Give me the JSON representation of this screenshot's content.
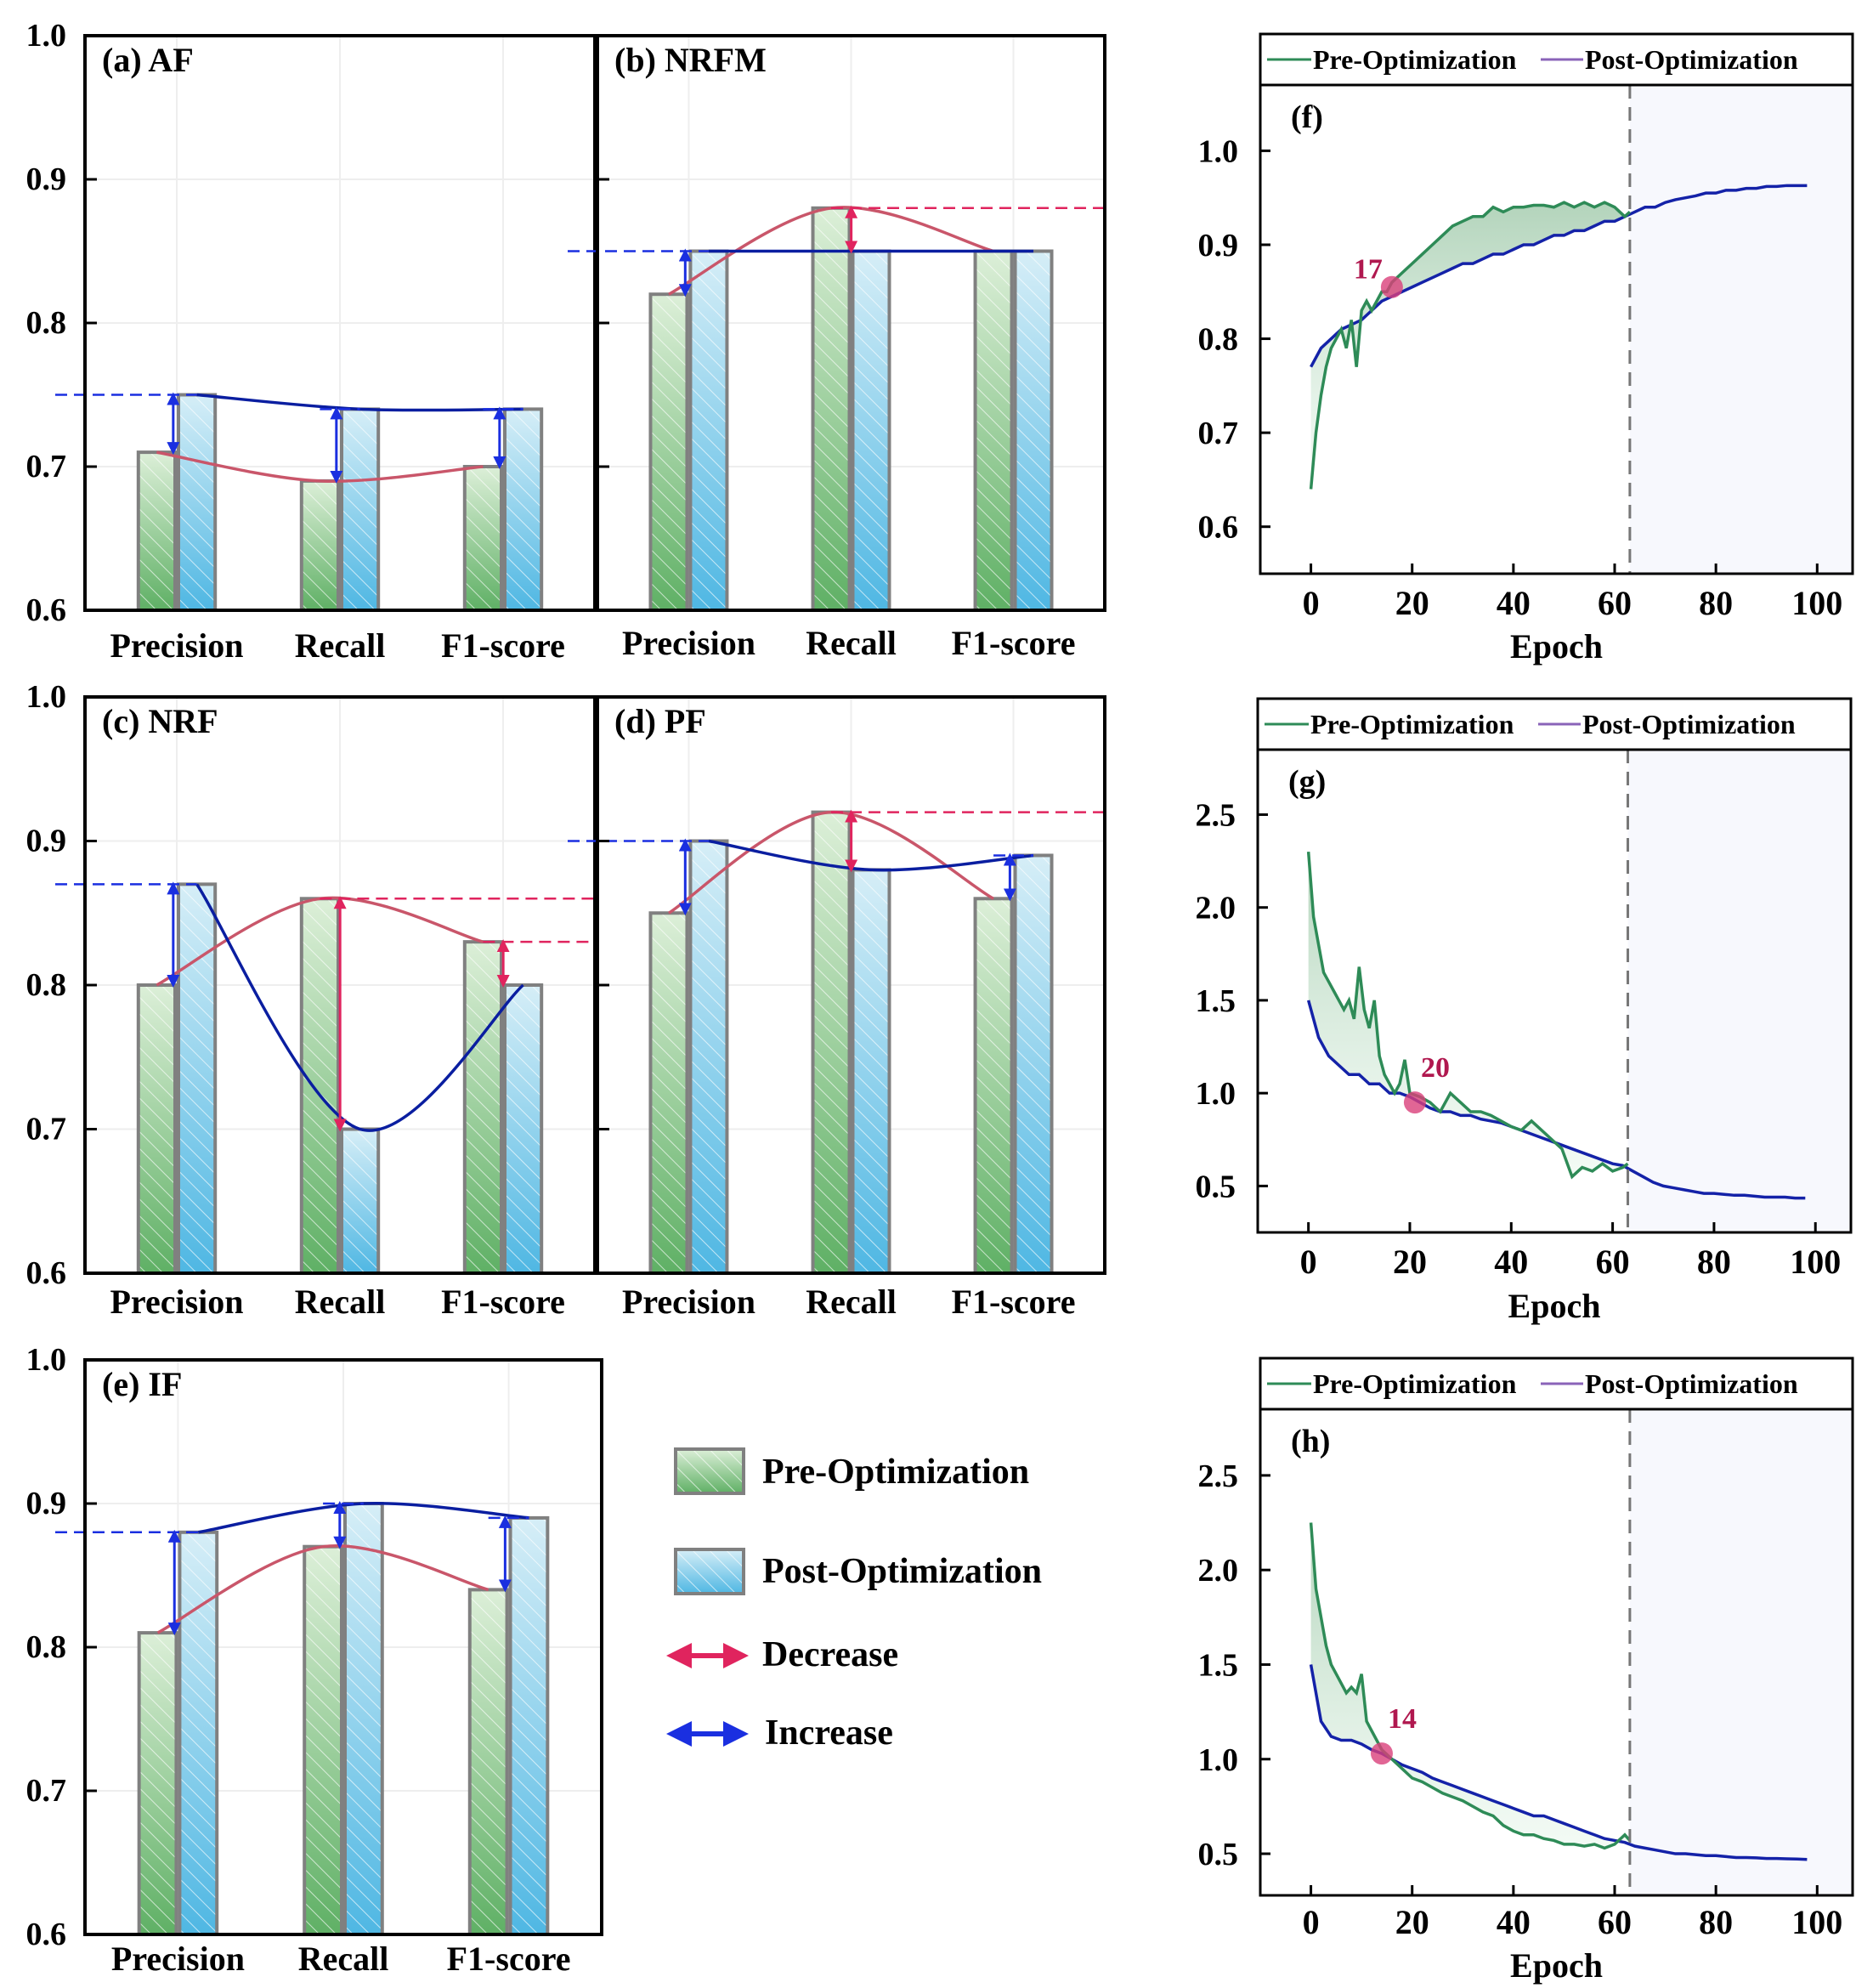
{
  "chart_data": [
    {
      "id": "a",
      "type": "bar",
      "title": "(a) AF",
      "categories": [
        "Precision",
        "Recall",
        "F1-score"
      ],
      "series": [
        {
          "name": "Pre-Optimization",
          "values": [
            0.71,
            0.69,
            0.7
          ]
        },
        {
          "name": "Post-Optimization",
          "values": [
            0.75,
            0.74,
            0.74
          ]
        }
      ],
      "ylim": [
        0.6,
        1.0
      ],
      "yticks": [
        "0.6",
        "0.7",
        "0.8",
        "0.9",
        "1.0"
      ]
    },
    {
      "id": "b",
      "type": "bar",
      "title": "(b) NRFM",
      "categories": [
        "Precision",
        "Recall",
        "F1-score"
      ],
      "series": [
        {
          "name": "Pre-Optimization",
          "values": [
            0.82,
            0.88,
            0.85
          ]
        },
        {
          "name": "Post-Optimization",
          "values": [
            0.85,
            0.85,
            0.85
          ]
        }
      ],
      "ylim": [
        0.6,
        1.0
      ],
      "yticks": [
        "0.6",
        "0.7",
        "0.8",
        "0.9",
        "1.0"
      ]
    },
    {
      "id": "c",
      "type": "bar",
      "title": "(c) NRF",
      "categories": [
        "Precision",
        "Recall",
        "F1-score"
      ],
      "series": [
        {
          "name": "Pre-Optimization",
          "values": [
            0.8,
            0.86,
            0.83
          ]
        },
        {
          "name": "Post-Optimization",
          "values": [
            0.87,
            0.7,
            0.8
          ]
        }
      ],
      "ylim": [
        0.6,
        1.0
      ],
      "yticks": [
        "0.6",
        "0.7",
        "0.8",
        "0.9",
        "1.0"
      ]
    },
    {
      "id": "d",
      "type": "bar",
      "title": "(d) PF",
      "categories": [
        "Precision",
        "Recall",
        "F1-score"
      ],
      "series": [
        {
          "name": "Pre-Optimization",
          "values": [
            0.85,
            0.92,
            0.86
          ]
        },
        {
          "name": "Post-Optimization",
          "values": [
            0.9,
            0.88,
            0.89
          ]
        }
      ],
      "ylim": [
        0.6,
        1.0
      ],
      "yticks": [
        "0.6",
        "0.7",
        "0.8",
        "0.9",
        "1.0"
      ]
    },
    {
      "id": "e",
      "type": "bar",
      "title": "(e) IF",
      "categories": [
        "Precision",
        "Recall",
        "F1-score"
      ],
      "series": [
        {
          "name": "Pre-Optimization",
          "values": [
            0.81,
            0.87,
            0.84
          ]
        },
        {
          "name": "Post-Optimization",
          "values": [
            0.88,
            0.9,
            0.89
          ]
        }
      ],
      "ylim": [
        0.6,
        1.0
      ],
      "yticks": [
        "0.6",
        "0.7",
        "0.8",
        "0.9",
        "1.0"
      ]
    },
    {
      "id": "f",
      "type": "line",
      "title": "(f)",
      "xlabel": "Epoch",
      "xlim": [
        -10,
        107
      ],
      "ylim": [
        0.55,
        1.07
      ],
      "xticks": [
        0,
        20,
        40,
        60,
        80,
        100
      ],
      "yticks": [
        0.6,
        0.7,
        0.8,
        0.9,
        1.0
      ],
      "ytick_labels": [
        "0.6",
        "0.7",
        "0.8",
        "0.9",
        "1.0"
      ],
      "vline": 63,
      "marker": {
        "x": 16,
        "y": 0.855,
        "label": "17"
      },
      "series": [
        {
          "name": "Pre-Optimization",
          "x": [
            0,
            1,
            2,
            3,
            4,
            5,
            6,
            7,
            8,
            9,
            10,
            11,
            12,
            13,
            14,
            15,
            16,
            18,
            20,
            22,
            24,
            26,
            28,
            30,
            32,
            34,
            36,
            38,
            40,
            42,
            44,
            46,
            48,
            50,
            52,
            54,
            56,
            58,
            60,
            62,
            63
          ],
          "y": [
            0.64,
            0.7,
            0.74,
            0.77,
            0.79,
            0.8,
            0.81,
            0.79,
            0.82,
            0.77,
            0.83,
            0.84,
            0.83,
            0.84,
            0.85,
            0.85,
            0.86,
            0.87,
            0.88,
            0.89,
            0.9,
            0.91,
            0.92,
            0.925,
            0.93,
            0.93,
            0.94,
            0.935,
            0.94,
            0.94,
            0.942,
            0.942,
            0.94,
            0.945,
            0.94,
            0.945,
            0.94,
            0.945,
            0.94,
            0.93,
            0.935
          ]
        },
        {
          "name": "Post-Optimization",
          "x": [
            0,
            2,
            4,
            6,
            8,
            10,
            12,
            14,
            16,
            18,
            20,
            22,
            24,
            26,
            28,
            30,
            32,
            34,
            36,
            38,
            40,
            42,
            44,
            46,
            48,
            50,
            52,
            54,
            56,
            58,
            60,
            62,
            64,
            66,
            68,
            70,
            72,
            74,
            76,
            78,
            80,
            82,
            84,
            86,
            88,
            90,
            92,
            94,
            96,
            98
          ],
          "y": [
            0.77,
            0.79,
            0.8,
            0.81,
            0.815,
            0.82,
            0.83,
            0.84,
            0.845,
            0.85,
            0.855,
            0.86,
            0.865,
            0.87,
            0.875,
            0.88,
            0.88,
            0.885,
            0.89,
            0.89,
            0.895,
            0.9,
            0.9,
            0.905,
            0.91,
            0.91,
            0.915,
            0.915,
            0.92,
            0.925,
            0.925,
            0.93,
            0.935,
            0.94,
            0.94,
            0.945,
            0.948,
            0.95,
            0.952,
            0.955,
            0.955,
            0.958,
            0.958,
            0.96,
            0.96,
            0.962,
            0.962,
            0.963,
            0.963,
            0.963
          ]
        }
      ]
    },
    {
      "id": "g",
      "type": "line",
      "title": "(g)",
      "xlabel": "Epoch",
      "xlim": [
        -10,
        107
      ],
      "ylim": [
        0.25,
        2.85
      ],
      "xticks": [
        0,
        20,
        40,
        60,
        80,
        100
      ],
      "yticks": [
        0.5,
        1.0,
        1.5,
        2.0,
        2.5
      ],
      "ytick_labels": [
        "0.5",
        "1.0",
        "1.5",
        "2.0",
        "2.5"
      ],
      "vline": 63,
      "marker": {
        "x": 21,
        "y": 0.95,
        "label": "20"
      },
      "series": [
        {
          "name": "Pre-Optimization",
          "x": [
            0,
            1,
            2,
            3,
            4,
            5,
            6,
            7,
            8,
            9,
            10,
            11,
            12,
            13,
            14,
            15,
            16,
            17,
            18,
            19,
            20,
            22,
            24,
            26,
            28,
            30,
            32,
            34,
            36,
            38,
            40,
            42,
            44,
            46,
            48,
            50,
            52,
            54,
            56,
            58,
            60,
            62,
            63
          ],
          "y": [
            2.3,
            1.95,
            1.8,
            1.65,
            1.6,
            1.55,
            1.5,
            1.45,
            1.5,
            1.4,
            1.68,
            1.45,
            1.35,
            1.5,
            1.2,
            1.1,
            1.05,
            1.0,
            1.05,
            1.18,
            1.0,
            0.98,
            0.95,
            0.9,
            1.0,
            0.95,
            0.9,
            0.9,
            0.88,
            0.85,
            0.82,
            0.8,
            0.85,
            0.8,
            0.75,
            0.7,
            0.55,
            0.6,
            0.58,
            0.62,
            0.58,
            0.6,
            0.62
          ]
        },
        {
          "name": "Post-Optimization",
          "x": [
            0,
            2,
            4,
            6,
            8,
            10,
            12,
            14,
            16,
            18,
            20,
            22,
            24,
            26,
            28,
            30,
            32,
            34,
            36,
            38,
            40,
            42,
            44,
            46,
            48,
            50,
            52,
            54,
            56,
            58,
            60,
            62,
            64,
            66,
            68,
            70,
            72,
            74,
            76,
            78,
            80,
            82,
            84,
            86,
            88,
            90,
            92,
            94,
            96,
            98
          ],
          "y": [
            1.5,
            1.3,
            1.2,
            1.15,
            1.1,
            1.1,
            1.05,
            1.05,
            1.0,
            1.0,
            0.98,
            0.95,
            0.92,
            0.9,
            0.9,
            0.88,
            0.88,
            0.86,
            0.85,
            0.84,
            0.82,
            0.8,
            0.78,
            0.76,
            0.74,
            0.72,
            0.7,
            0.68,
            0.66,
            0.64,
            0.62,
            0.61,
            0.58,
            0.55,
            0.52,
            0.5,
            0.49,
            0.48,
            0.47,
            0.46,
            0.46,
            0.455,
            0.45,
            0.45,
            0.445,
            0.44,
            0.44,
            0.44,
            0.435,
            0.435
          ]
        }
      ]
    },
    {
      "id": "h",
      "type": "line",
      "title": "(h)",
      "xlabel": "Epoch",
      "xlim": [
        -10,
        107
      ],
      "ylim": [
        0.28,
        2.85
      ],
      "xticks": [
        0,
        20,
        40,
        60,
        80,
        100
      ],
      "yticks": [
        0.5,
        1.0,
        1.5,
        2.0,
        2.5
      ],
      "ytick_labels": [
        "0.5",
        "1.0",
        "1.5",
        "2.0",
        "2.5"
      ],
      "vline": 63,
      "marker": {
        "x": 14,
        "y": 1.03,
        "label": "14"
      },
      "series": [
        {
          "name": "Pre-Optimization",
          "x": [
            0,
            1,
            2,
            3,
            4,
            5,
            6,
            7,
            8,
            9,
            10,
            11,
            12,
            13,
            14,
            16,
            18,
            20,
            22,
            24,
            26,
            28,
            30,
            32,
            34,
            36,
            38,
            40,
            42,
            44,
            46,
            48,
            50,
            52,
            54,
            56,
            58,
            60,
            62,
            63
          ],
          "y": [
            2.25,
            1.9,
            1.75,
            1.6,
            1.5,
            1.45,
            1.4,
            1.35,
            1.38,
            1.35,
            1.45,
            1.2,
            1.15,
            1.1,
            1.05,
            1.0,
            0.95,
            0.9,
            0.88,
            0.85,
            0.82,
            0.8,
            0.78,
            0.75,
            0.72,
            0.7,
            0.65,
            0.62,
            0.6,
            0.6,
            0.58,
            0.57,
            0.55,
            0.55,
            0.54,
            0.55,
            0.53,
            0.55,
            0.6,
            0.57
          ]
        },
        {
          "name": "Post-Optimization",
          "x": [
            0,
            2,
            4,
            6,
            8,
            10,
            12,
            14,
            16,
            18,
            20,
            22,
            24,
            26,
            28,
            30,
            32,
            34,
            36,
            38,
            40,
            42,
            44,
            46,
            48,
            50,
            52,
            54,
            56,
            58,
            60,
            62,
            64,
            66,
            68,
            70,
            72,
            74,
            76,
            78,
            80,
            82,
            84,
            86,
            88,
            90,
            92,
            94,
            96,
            98
          ],
          "y": [
            1.5,
            1.2,
            1.12,
            1.1,
            1.1,
            1.08,
            1.05,
            1.03,
            1.0,
            0.97,
            0.95,
            0.93,
            0.9,
            0.88,
            0.86,
            0.84,
            0.82,
            0.8,
            0.78,
            0.76,
            0.74,
            0.72,
            0.7,
            0.7,
            0.68,
            0.66,
            0.64,
            0.62,
            0.6,
            0.58,
            0.57,
            0.56,
            0.54,
            0.53,
            0.52,
            0.51,
            0.5,
            0.5,
            0.495,
            0.49,
            0.49,
            0.485,
            0.48,
            0.48,
            0.478,
            0.475,
            0.475,
            0.473,
            0.472,
            0.47
          ]
        }
      ]
    }
  ],
  "legend": {
    "pre": "Pre-Optimization",
    "post": "Post-Optimization",
    "decrease": "Decrease",
    "increase": "Increase"
  },
  "colors": {
    "pre_line": "#2e8b57",
    "post_line": "#1422a8",
    "legend_post_swatch": "#8a63b8",
    "bar_green": "#5fb065",
    "bar_blue": "#4fb7e3",
    "bar_edge": "#808080",
    "decrease": "#e0245e",
    "increase": "#1a2fe0",
    "curve_pre": "#c9566a",
    "curve_post": "#0a1ea0",
    "marker": "#d9407a",
    "marker_text": "#b0184f"
  }
}
